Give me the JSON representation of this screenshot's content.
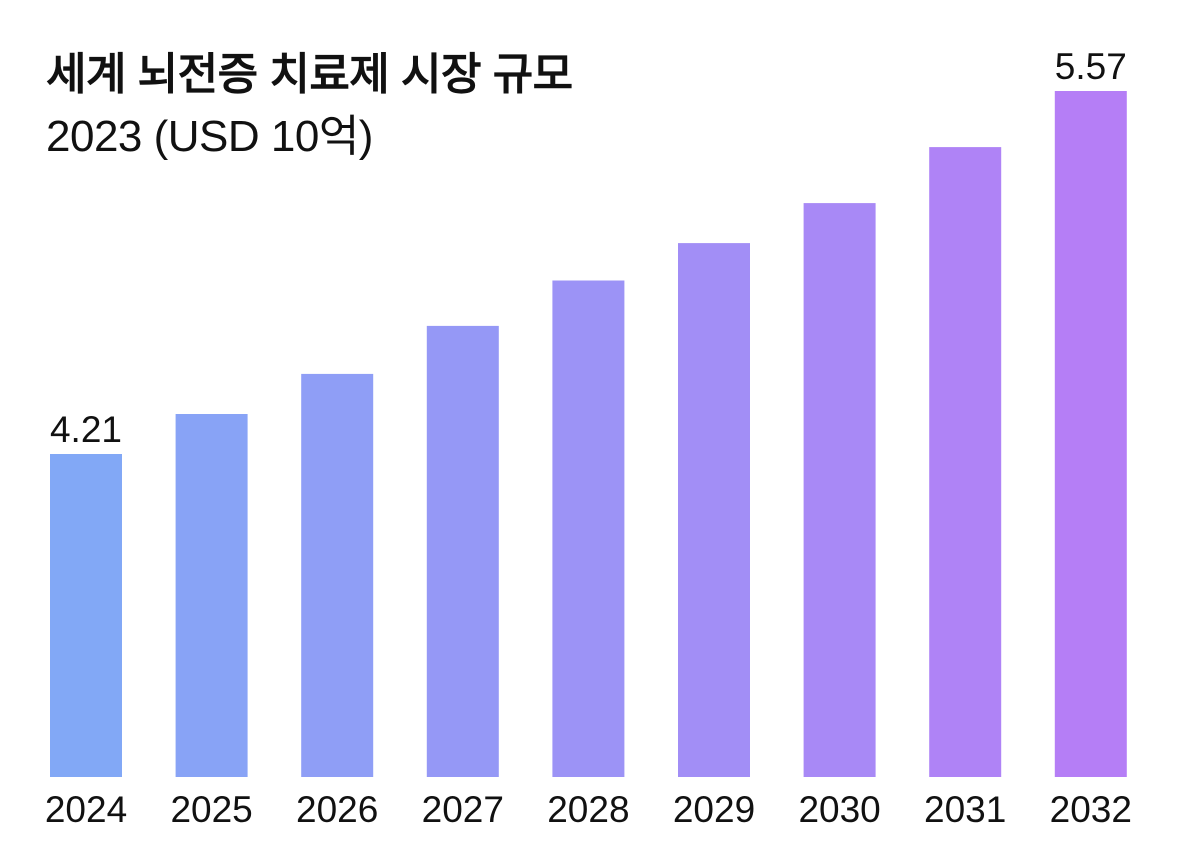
{
  "chart_data": {
    "type": "bar",
    "title": "세계 뇌전증 치료제 시장 규모",
    "subtitle": "2023 (USD 10억)",
    "xlabel": "",
    "ylabel": "",
    "categories": [
      "2024",
      "2025",
      "2026",
      "2027",
      "2028",
      "2029",
      "2030",
      "2031",
      "2032"
    ],
    "values": [
      4.21,
      4.36,
      4.51,
      4.69,
      4.86,
      5.0,
      5.15,
      5.36,
      5.57
    ],
    "data_labels": [
      {
        "index": 0,
        "text": "4.21"
      },
      {
        "index": 8,
        "text": "5.57"
      }
    ],
    "ylim": [
      3.0,
      5.57
    ],
    "grid": false,
    "legend": "none",
    "colors": {
      "start": "#82a8f6",
      "end": "#b57ef6"
    }
  }
}
